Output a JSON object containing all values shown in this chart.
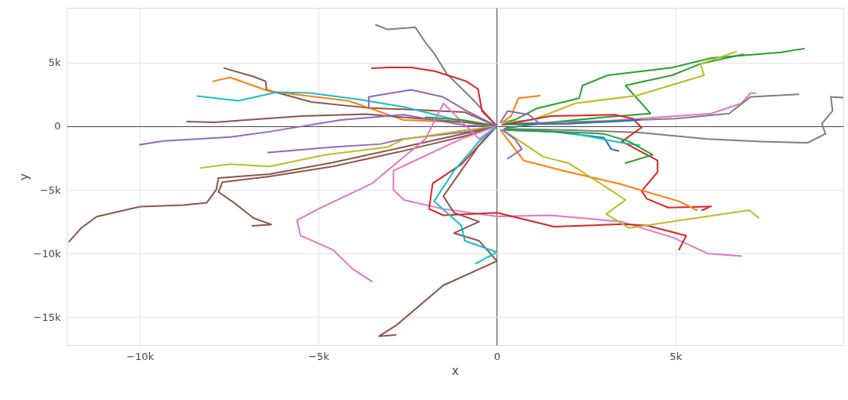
{
  "chart_data": {
    "type": "line",
    "xlabel": "x",
    "ylabel": "y",
    "xlim": [
      -12050,
      9700
    ],
    "ylim": [
      -17200,
      9300
    ],
    "xticks": [
      {
        "value": -10000,
        "label": "−10k"
      },
      {
        "value": -5000,
        "label": "−5k"
      },
      0,
      {
        "value": 5000,
        "label": "5k"
      }
    ],
    "yticks": [
      {
        "value": -15000,
        "label": "−15k"
      },
      {
        "value": -10000,
        "label": "−10k"
      },
      {
        "value": -5000,
        "label": "−5k"
      },
      0,
      {
        "value": 5000,
        "label": "5k"
      }
    ],
    "grid": true,
    "marker": "none",
    "line_style": "solid",
    "series": [
      {
        "color": "#7f7f7f",
        "x": [
          0,
          -640,
          -1410,
          -1740,
          -2000,
          -2290,
          -3060,
          -3390
        ],
        "values": [
          0,
          2000,
          4130,
          5650,
          6570,
          7780,
          7600,
          7960
        ]
      },
      {
        "color": "#d62728",
        "x": [
          0,
          -420,
          -530,
          -860,
          -1190,
          -1740,
          -2400,
          -3060,
          -3500
        ],
        "values": [
          0,
          1200,
          2920,
          3530,
          3830,
          4320,
          4620,
          4620,
          4560
        ]
      },
      {
        "color": "#8c564b",
        "x": [
          0,
          -900,
          -2400,
          -3650,
          -5200,
          -6450,
          -6480,
          -6810,
          -7640
        ],
        "values": [
          0,
          1100,
          1300,
          1450,
          1900,
          2860,
          3530,
          3890,
          4560
        ]
      },
      {
        "color": "#ff7f0e",
        "x": [
          0,
          -860,
          -2620,
          -4160,
          -5260,
          -6370,
          -7470,
          -7950
        ],
        "values": [
          0,
          300,
          490,
          2000,
          2370,
          2740,
          3830,
          3530
        ]
      },
      {
        "color": "#17becf",
        "x": [
          0,
          -860,
          -2620,
          -3940,
          -5260,
          -6150,
          -7250,
          -8390
        ],
        "values": [
          0,
          300,
          1520,
          2130,
          2610,
          2670,
          2000,
          2370
        ]
      },
      {
        "color": "#8c564b",
        "x": [
          0,
          -860,
          -2620,
          -3650,
          -5460,
          -7030,
          -7910,
          -8680
        ],
        "values": [
          0,
          300,
          700,
          950,
          800,
          490,
          300,
          360
        ]
      },
      {
        "color": "#9467bd",
        "x": [
          0,
          -860,
          -2620,
          -4380,
          -6370,
          -7470,
          -9340,
          -10000
        ],
        "values": [
          0,
          60,
          910,
          490,
          -430,
          -850,
          -1160,
          -1460
        ]
      },
      {
        "color": "#9467bd",
        "x": [
          0,
          -860,
          -1520,
          -2400,
          -3590,
          -3590
        ],
        "values": [
          0,
          1220,
          2310,
          2860,
          2310,
          1400
        ]
      },
      {
        "color": "#9467bd",
        "x": [
          0,
          -860,
          -2620,
          -3260,
          -4600,
          -6410
        ],
        "values": [
          0,
          -430,
          -1000,
          -1400,
          -1640,
          -2070
        ]
      },
      {
        "color": "#bcbd22",
        "x": [
          0,
          -860,
          -2620,
          -3060,
          -4820,
          -6370,
          -7470,
          -8300
        ],
        "values": [
          0,
          -300,
          -1030,
          -1640,
          -2250,
          -3160,
          -2980,
          -3280
        ]
      },
      {
        "color": "#8c564b",
        "x": [
          0,
          -860,
          -2620,
          -4600,
          -6370,
          -7800,
          -7860,
          -8130,
          -8790,
          -10000,
          -11210,
          -11650,
          -11980
        ],
        "values": [
          0,
          -550,
          -1640,
          -2860,
          -3770,
          -4070,
          -4980,
          -6020,
          -6200,
          -6320,
          -7110,
          -8020,
          -9060
        ]
      },
      {
        "color": "#8c564b",
        "x": [
          0,
          -860,
          -2620,
          -4600,
          -6370,
          -7690,
          -7800,
          -7360,
          -6810,
          -6320,
          -6850
        ],
        "values": [
          0,
          -750,
          -1940,
          -3160,
          -3950,
          -4400,
          -5170,
          -6020,
          -7230,
          -7720,
          -7840
        ]
      },
      {
        "color": "#e377c2",
        "x": [
          0,
          -500,
          -1500,
          -2000,
          -3500,
          -5000,
          -5600,
          -5500,
          -4600,
          -4050,
          -3500
        ],
        "values": [
          0,
          -1000,
          1800,
          -1000,
          -4500,
          -6500,
          -7400,
          -8600,
          -9700,
          -11200,
          -12200
        ]
      },
      {
        "color": "#e377c2",
        "x": [
          0,
          -1000,
          -2900,
          -2900,
          -2600,
          -1500,
          0,
          1500,
          3480,
          4930,
          5900,
          6850
        ],
        "values": [
          0,
          -1000,
          -3500,
          -5000,
          -5800,
          -6500,
          -7100,
          -7000,
          -7500,
          -8750,
          -10000,
          -10200
        ]
      },
      {
        "color": "#d62728",
        "x": [
          0,
          -400,
          -1000,
          -1800,
          -1900,
          -1500,
          0,
          1600,
          3500,
          4200,
          5300,
          5100
        ],
        "values": [
          0,
          -1200,
          -3000,
          -4500,
          -6500,
          -7000,
          -6800,
          -7900,
          -7700,
          -7800,
          -8600,
          -9700
        ]
      },
      {
        "color": "#8c564b",
        "x": [
          0,
          -500,
          -1000,
          -1500,
          -1200,
          -500,
          -1200,
          -500,
          0,
          -1500,
          -2800,
          -3300,
          -2840
        ],
        "values": [
          0,
          -1500,
          -3500,
          -5500,
          -6800,
          -7500,
          -8400,
          -9000,
          -10600,
          -12500,
          -15600,
          -16500,
          -16400
        ]
      },
      {
        "color": "#17becf",
        "x": [
          0,
          -500,
          -1200,
          -1760,
          -1000,
          -900,
          0,
          -600
        ],
        "values": [
          0,
          -1200,
          -3500,
          -5900,
          -7800,
          -9000,
          -9900,
          -10800
        ]
      },
      {
        "color": "#2ca02c",
        "x": [
          200,
          500,
          1120,
          2300,
          2400,
          3100,
          4900,
          6000,
          7950,
          8600
        ],
        "values": [
          300,
          500,
          1400,
          2200,
          3200,
          4000,
          4600,
          5350,
          5800,
          6100
        ]
      },
      {
        "color": "#2ca02c",
        "x": [
          250,
          1500,
          3000,
          4300,
          3600,
          4900,
          5700,
          6900
        ],
        "values": [
          -150,
          300,
          700,
          1000,
          3200,
          4000,
          4900,
          5650
        ]
      },
      {
        "color": "#bcbd22",
        "x": [
          150,
          1000,
          2200,
          3900,
          5800,
          5700,
          6700
        ],
        "values": [
          250,
          500,
          1800,
          2400,
          4000,
          4900,
          5850
        ]
      },
      {
        "color": "#e377c2",
        "x": [
          200,
          2000,
          4000,
          6000,
          6850,
          7100,
          7250
        ],
        "values": [
          150,
          200,
          600,
          1000,
          1800,
          2600,
          2600
        ]
      },
      {
        "color": "#7f7f7f",
        "x": [
          250,
          3000,
          5000,
          6500,
          7100,
          8450
        ],
        "values": [
          200,
          400,
          600,
          1000,
          2300,
          2500
        ]
      },
      {
        "color": "#7f7f7f",
        "x": [
          200,
          2000,
          4000,
          5900,
          7400,
          8700,
          9200,
          9100,
          9400,
          9350,
          9700
        ],
        "values": [
          -200,
          -300,
          -500,
          -1000,
          -1200,
          -1300,
          -600,
          200,
          1200,
          2300,
          2250
        ]
      },
      {
        "color": "#d62728",
        "x": [
          150,
          1500,
          3300,
          3800,
          4050,
          3500,
          4500,
          4500,
          4050,
          4200,
          4800,
          6000,
          5750
        ],
        "values": [
          100,
          800,
          900,
          600,
          -100,
          -1200,
          -2700,
          -3600,
          -5100,
          -5700,
          -6400,
          -6300,
          -6600
        ]
      },
      {
        "color": "#ff7f0e",
        "x": [
          100,
          750,
          2000,
          3400,
          5100,
          5600
        ],
        "values": [
          -300,
          -2700,
          -3600,
          -4500,
          -5900,
          -6600
        ]
      },
      {
        "color": "#bcbd22",
        "x": [
          200,
          1300,
          2000,
          2900,
          3600,
          3060,
          3700,
          4900,
          7070,
          7330
        ],
        "values": [
          -350,
          -2400,
          -2900,
          -4500,
          -5800,
          -6900,
          -8000,
          -7500,
          -6600,
          -7200
        ]
      },
      {
        "color": "#1f77b4",
        "x": [
          200,
          1500,
          3000,
          3200,
          3400
        ],
        "values": [
          -250,
          -400,
          -900,
          -1800,
          -1950
        ]
      },
      {
        "color": "#1f77b4",
        "x": [
          250,
          2000,
          3500,
          4000
        ],
        "values": [
          150,
          200,
          400,
          500
        ]
      },
      {
        "color": "#17becf",
        "x": [
          200,
          2000,
          3500,
          4000
        ],
        "values": [
          -300,
          -500,
          -1300,
          -1500
        ]
      },
      {
        "color": "#2ca02c",
        "x": [
          250,
          1500,
          3000,
          3700,
          4360,
          3600
        ],
        "values": [
          -300,
          -400,
          -600,
          -1200,
          -2250,
          -2900
        ]
      },
      {
        "color": "#ff7f0e",
        "x": [
          150,
          400,
          600,
          1200
        ],
        "values": [
          300,
          800,
          2200,
          2400
        ]
      },
      {
        "color": "#9467bd",
        "x": [
          150,
          500,
          700,
          300
        ],
        "values": [
          -300,
          -1000,
          -1800,
          -2550
        ]
      },
      {
        "color": "#9467bd",
        "x": [
          100,
          300,
          900,
          1200
        ],
        "values": [
          300,
          1200,
          900,
          200
        ]
      },
      {
        "color": "#2ca02c",
        "x": [
          -150,
          -1000,
          -2000
        ],
        "values": [
          100,
          500,
          700
        ]
      }
    ]
  }
}
